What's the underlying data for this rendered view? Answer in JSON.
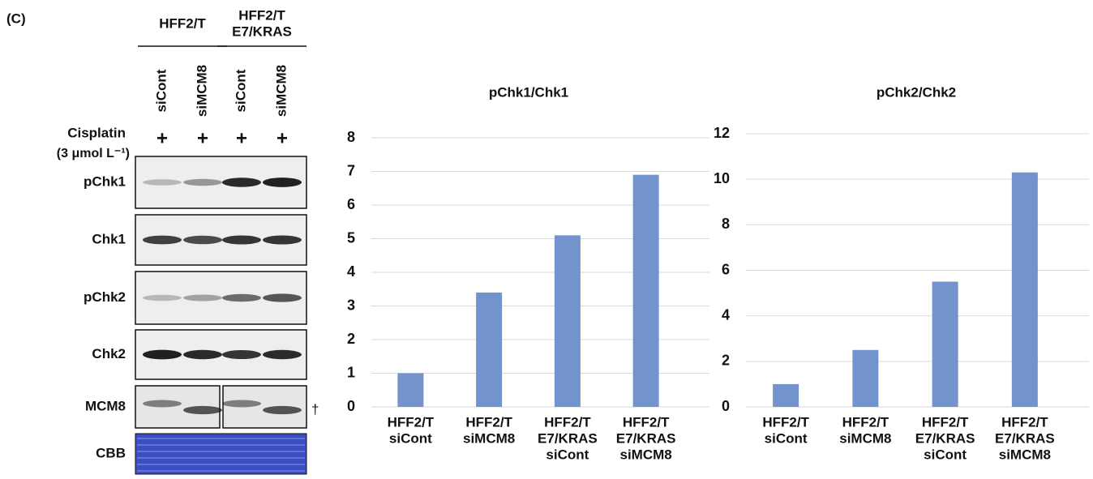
{
  "panel_label": "(C)",
  "blot": {
    "groups": [
      [
        "HFF2/T"
      ],
      [
        "HFF2/T",
        "E7/KRAS"
      ]
    ],
    "lanes": [
      "siCont",
      "siMCM8",
      "siCont",
      "siMCM8"
    ],
    "treatment": "Cisplatin",
    "dose": "(3 μmol L⁻¹)",
    "treatment_marks": [
      "+",
      "+",
      "+",
      "+"
    ],
    "rows": [
      "pChk1",
      "Chk1",
      "pChk2",
      "Chk2",
      "MCM8",
      "CBB"
    ],
    "footnote_mark": "†"
  },
  "chart_data": [
    {
      "type": "bar",
      "title": "pChk1/Chk1",
      "categories": [
        [
          "HFF2/T",
          "siCont"
        ],
        [
          "HFF2/T",
          "siMCM8"
        ],
        [
          "HFF2/T",
          "E7/KRAS",
          "siCont"
        ],
        [
          "HFF2/T",
          "E7/KRAS",
          "siMCM8"
        ]
      ],
      "values": [
        1,
        3.4,
        5.1,
        6.9
      ],
      "color": "#7293cb",
      "ylim": [
        0,
        8
      ],
      "yticks": [
        0,
        1,
        2,
        3,
        4,
        5,
        6,
        7,
        8
      ],
      "grid": true
    },
    {
      "type": "bar",
      "title": "pChk2/Chk2",
      "categories": [
        [
          "HFF2/T",
          "siCont"
        ],
        [
          "HFF2/T",
          "siMCM8"
        ],
        [
          "HFF2/T",
          "E7/KRAS",
          "siCont"
        ],
        [
          "HFF2/T",
          "E7/KRAS",
          "siMCM8"
        ]
      ],
      "values": [
        1,
        2.5,
        5.5,
        10.3
      ],
      "color": "#7293cb",
      "ylim": [
        0,
        12
      ],
      "yticks": [
        0,
        2,
        4,
        6,
        8,
        10,
        12
      ],
      "grid": true
    }
  ]
}
